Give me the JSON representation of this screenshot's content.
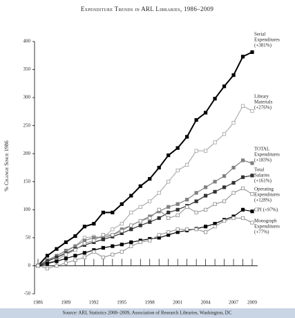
{
  "chart_data": {
    "type": "line",
    "title": "Expenditure Trends in ARL Libraries, 1986–2009",
    "y_label": "% Change Since 1986",
    "source": "Source: ARL Statistics 2008–2009, Association of Research Libraries, Washington, DC",
    "x": [
      1986,
      1987,
      1988,
      1989,
      1990,
      1991,
      1992,
      1993,
      1994,
      1995,
      1996,
      1997,
      1998,
      1999,
      2000,
      2001,
      2002,
      2003,
      2004,
      2005,
      2006,
      2007,
      2008,
      2009
    ],
    "xticks": [
      1986,
      1989,
      1992,
      1995,
      1998,
      2001,
      2004,
      2007,
      2009
    ],
    "xlim": [
      1986,
      2009
    ],
    "ylim": [
      -50,
      400
    ],
    "yticks": [
      -50,
      0,
      50,
      100,
      150,
      200,
      250,
      300,
      350,
      400
    ],
    "series": [
      {
        "name": [
          "Serial",
          "Expenditures",
          "(+381%)"
        ],
        "color": "#000000",
        "marker": "filled",
        "width": 2,
        "values": [
          0,
          18,
          30,
          42,
          53,
          70,
          75,
          95,
          95,
          110,
          125,
          142,
          155,
          175,
          197,
          210,
          230,
          260,
          273,
          298,
          320,
          340,
          373,
          381
        ]
      },
      {
        "name": [
          "Library",
          "Materials",
          "(+276%)"
        ],
        "color": "#a0a0a0",
        "marker": "open",
        "width": 1,
        "values": [
          0,
          10,
          15,
          25,
          35,
          50,
          52,
          50,
          65,
          75,
          95,
          105,
          115,
          130,
          150,
          170,
          180,
          205,
          205,
          220,
          235,
          255,
          285,
          276
        ]
      },
      {
        "name": [
          "TOTAL",
          "Expenditures",
          "(+183%)"
        ],
        "color": "#808080",
        "marker": "filled",
        "width": 1.2,
        "values": [
          0,
          10,
          18,
          27,
          35,
          45,
          50,
          50,
          55,
          65,
          72,
          80,
          88,
          97,
          105,
          110,
          118,
          130,
          140,
          150,
          160,
          175,
          188,
          183
        ]
      },
      {
        "name": [
          "Total",
          "Salaries",
          "(+161%)"
        ],
        "color": "#333333",
        "marker": "filled",
        "width": 1.2,
        "values": [
          0,
          8,
          15,
          22,
          30,
          37,
          42,
          47,
          52,
          58,
          65,
          72,
          78,
          85,
          95,
          100,
          107,
          115,
          125,
          132,
          140,
          148,
          158,
          161
        ]
      },
      {
        "name": [
          "Operating",
          "Expenditures",
          "(+128%)"
        ],
        "color": "#8a8a8a",
        "marker": "open",
        "width": 1,
        "values": [
          0,
          5,
          10,
          20,
          28,
          40,
          45,
          55,
          55,
          62,
          72,
          80,
          85,
          100,
          85,
          90,
          105,
          95,
          100,
          110,
          115,
          130,
          138,
          128
        ]
      },
      {
        "name": [
          "CPI (+97%)"
        ],
        "color": "#000000",
        "marker": "filled",
        "width": 1.2,
        "values": [
          0,
          4,
          8,
          13,
          18,
          23,
          28,
          32,
          35,
          38,
          42,
          45,
          48,
          50,
          55,
          60,
          63,
          66,
          70,
          75,
          82,
          88,
          100,
          97
        ]
      },
      {
        "name": [
          "Monograph",
          "Expenditures",
          "(+77%)"
        ],
        "color": "#8a8a8a",
        "marker": "open",
        "width": 1,
        "values": [
          0,
          -5,
          0,
          5,
          10,
          15,
          25,
          15,
          20,
          25,
          35,
          42,
          45,
          55,
          60,
          65,
          65,
          65,
          60,
          70,
          80,
          85,
          85,
          77
        ]
      }
    ]
  }
}
